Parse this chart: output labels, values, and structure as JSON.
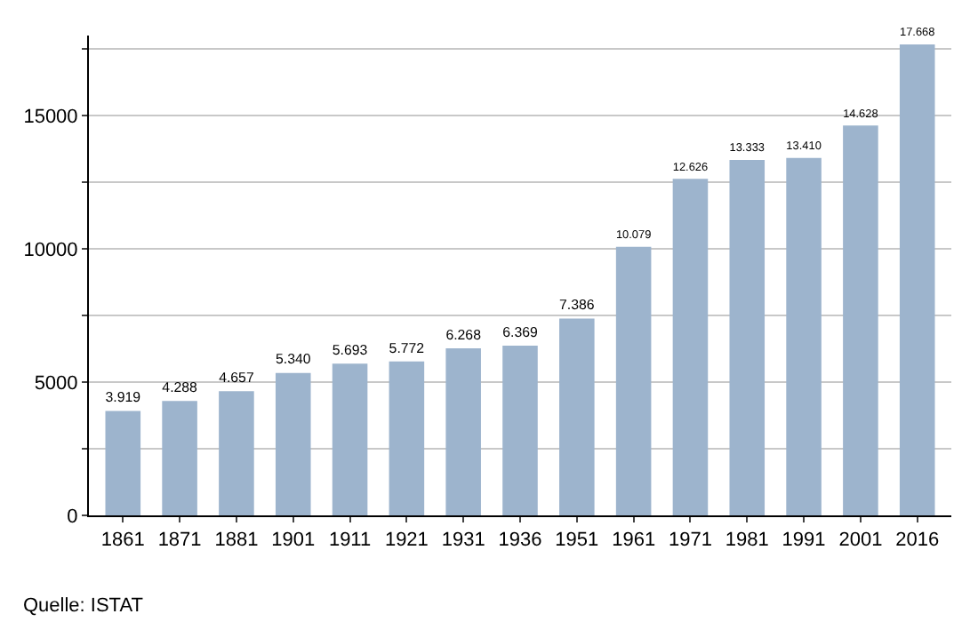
{
  "chart_data": {
    "type": "bar",
    "categories": [
      "1861",
      "1871",
      "1881",
      "1901",
      "1911",
      "1921",
      "1931",
      "1936",
      "1951",
      "1961",
      "1971",
      "1981",
      "1991",
      "2001",
      "2016"
    ],
    "values": [
      3919,
      4288,
      4657,
      5340,
      5693,
      5772,
      6268,
      6369,
      7386,
      10079,
      12626,
      13333,
      13410,
      14628,
      17668
    ],
    "value_labels": [
      "3.919",
      "4.288",
      "4.657",
      "5.340",
      "5.693",
      "5.772",
      "6.268",
      "6.369",
      "7.386",
      "10.079",
      "12.626",
      "13.333",
      "13.410",
      "14.628",
      "17.668"
    ],
    "color": "#9db4cd",
    "ylim": [
      0,
      18000
    ],
    "yticks": [
      0,
      {
        "value": 2500,
        "label": null
      },
      5000,
      {
        "value": 7500,
        "label": null
      },
      10000,
      {
        "value": 12500,
        "label": null
      },
      15000,
      {
        "value": 17500,
        "label": null
      }
    ],
    "grid": "y",
    "legend": false,
    "annotations": [
      "Quelle: ISTAT"
    ]
  }
}
